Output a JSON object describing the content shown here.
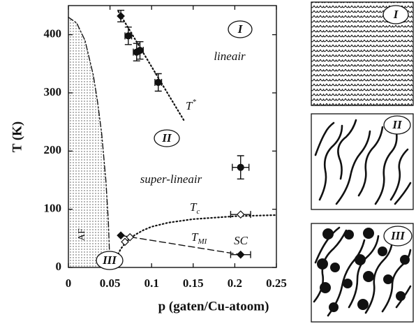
{
  "chart_data": {
    "type": "scatter",
    "xlabel": "p (gaten/Cu-atoom)",
    "ylabel": "T (K)",
    "xlim": [
      0,
      0.25
    ],
    "ylim": [
      0,
      450
    ],
    "xticks": [
      0,
      0.05,
      0.1,
      0.15,
      0.2,
      0.25
    ],
    "yticks": [
      0,
      100,
      200,
      300,
      400
    ],
    "series": [
      {
        "marker": "diamond",
        "filled": true,
        "x": [
          0.063
        ],
        "values": [
          432
        ],
        "yerr": [
          10
        ]
      },
      {
        "marker": "circle",
        "filled": true,
        "x": [
          0.072,
          0.082,
          0.086,
          0.108
        ],
        "values": [
          398,
          370,
          373,
          318
        ],
        "yerr": [
          15,
          15,
          15,
          15
        ],
        "xerr": [
          0.004,
          0.004,
          0.004,
          0.004
        ]
      },
      {
        "marker": "circle",
        "filled": true,
        "x": [
          0.207
        ],
        "values": [
          172
        ],
        "yerr": [
          20
        ],
        "xerr": [
          0.01
        ]
      },
      {
        "marker": "diamond",
        "filled": false,
        "x": [
          0.068,
          0.074,
          0.207
        ],
        "values": [
          44,
          52,
          91
        ],
        "xerr": [
          null,
          null,
          0.012
        ]
      },
      {
        "marker": "diamond",
        "filled": true,
        "x": [
          0.063,
          0.207
        ],
        "values": [
          55,
          22
        ],
        "xerr": [
          null,
          0.012
        ]
      }
    ],
    "curves": [
      {
        "style": "dotted",
        "x": [
          0.06,
          0.14
        ],
        "values": [
          440,
          250
        ]
      },
      {
        "style": "dotted",
        "x": [
          0.055,
          0.058,
          0.063,
          0.07,
          0.08,
          0.09,
          0.1,
          0.12,
          0.15,
          0.2,
          0.25
        ],
        "values": [
          0,
          18,
          32,
          45,
          56,
          64,
          70,
          77,
          83,
          88,
          90
        ]
      },
      {
        "style": "dashed",
        "x": [
          0.063,
          0.207
        ],
        "values": [
          55,
          22
        ]
      },
      {
        "style": "dashdot",
        "fill": true,
        "x": [
          0,
          0.01,
          0.02,
          0.03,
          0.035,
          0.04,
          0.045,
          0.048,
          0.05
        ],
        "values": [
          430,
          420,
          390,
          330,
          285,
          230,
          150,
          80,
          0
        ]
      }
    ],
    "labels": [
      "I",
      "lineair",
      "II",
      "super-lineair",
      "SC",
      "III",
      "AF"
    ],
    "T_star": {
      "text": "T",
      "sup": "*"
    },
    "T_c": {
      "text": "T",
      "sub": "c"
    },
    "T_MI": {
      "text": "T",
      "sub": "MI"
    }
  },
  "panels": [
    "I",
    "II",
    "III"
  ]
}
